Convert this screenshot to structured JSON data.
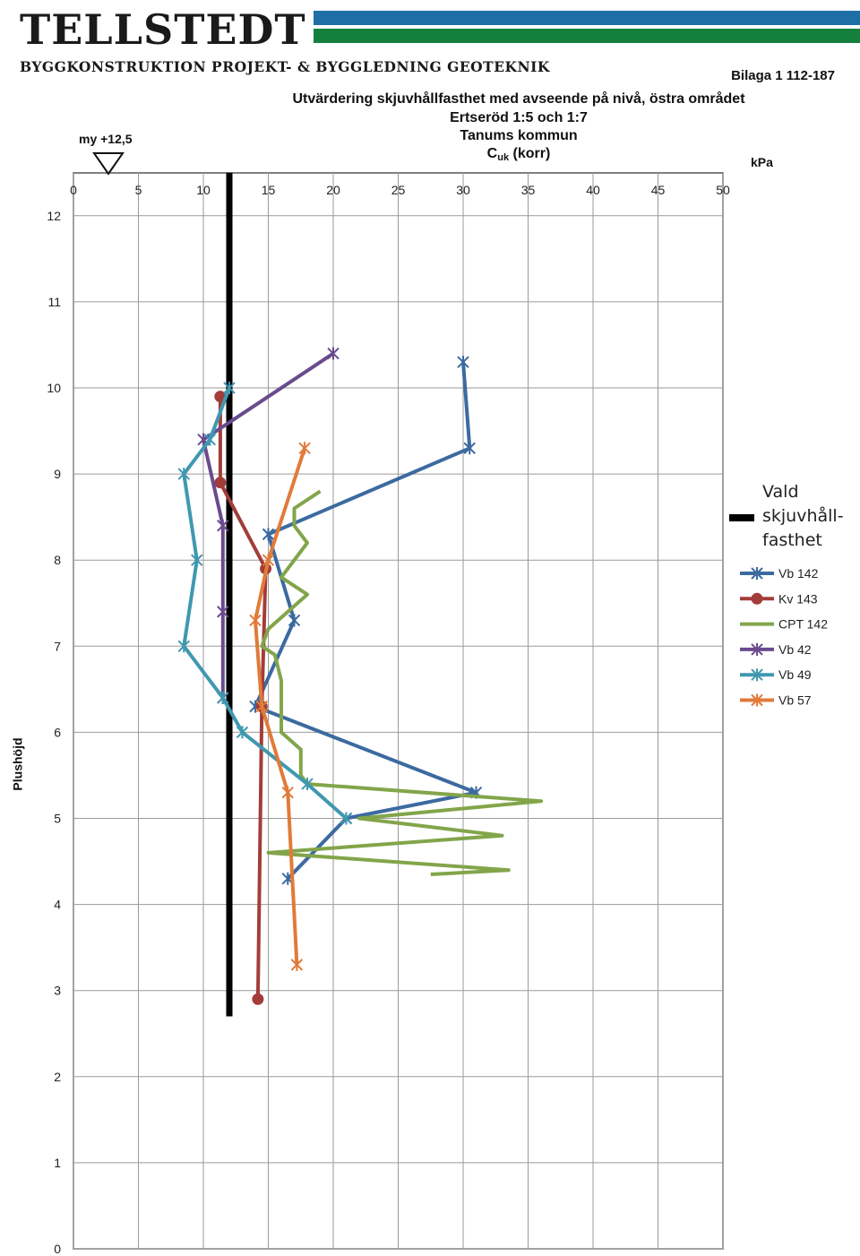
{
  "header": {
    "logo_text": "TELLSTEDT",
    "tagline": "BYGGKONSTRUKTION  PROJEKT- & BYGGLEDNING  GEOTEKNIK",
    "attachment": "Bilaga 1 112-187"
  },
  "colors": {
    "stripe_blue": "#1f6fa6",
    "stripe_green": "#15803d"
  },
  "chart_data": {
    "type": "line",
    "title_lines": [
      "Utvärdering skjuvhållfasthet med avseende på nivå, östra området",
      "Ertseröd 1:5 och 1:7",
      "Tanums kommun"
    ],
    "quantity_main": "C",
    "quantity_sub": "uk",
    "quantity_suffix": " (korr)",
    "x_unit": "kPa",
    "ylabel": "Plushöjd",
    "water_level_label": "my +12,5",
    "xlim": [
      0,
      50
    ],
    "ylim": [
      0,
      12
    ],
    "x_ticks": [
      0,
      5,
      10,
      15,
      20,
      25,
      30,
      35,
      40,
      45,
      50
    ],
    "y_ticks": [
      0,
      1,
      2,
      3,
      4,
      5,
      6,
      7,
      8,
      9,
      10,
      11,
      12
    ],
    "grid": true,
    "legend_position": "right",
    "chosen_strength": {
      "label_lines": [
        "Vald",
        "skjuvhåll-",
        "fasthet"
      ],
      "x": 12,
      "y_range": [
        2.7,
        12.5
      ],
      "color": "#000000"
    },
    "series": [
      {
        "name": "Vb 142",
        "color": "#3c6aa0",
        "marker": "x",
        "points": [
          [
            30,
            10.3
          ],
          [
            30.5,
            9.3
          ],
          [
            15,
            8.3
          ],
          [
            17,
            7.3
          ],
          [
            14,
            6.3
          ],
          [
            31,
            5.3
          ],
          [
            21,
            5.0
          ],
          [
            16.5,
            4.3
          ]
        ]
      },
      {
        "name": "Kv 143",
        "color": "#a33d3a",
        "marker": "o",
        "points": [
          [
            11.3,
            9.9
          ],
          [
            11.3,
            8.9
          ],
          [
            14.8,
            7.9
          ],
          [
            14.5,
            6.3
          ],
          [
            14.2,
            2.9
          ]
        ]
      },
      {
        "name": "CPT 142",
        "color": "#82a54a",
        "marker": "",
        "points": [
          [
            19,
            8.8
          ],
          [
            17,
            8.6
          ],
          [
            17,
            8.4
          ],
          [
            18,
            8.2
          ],
          [
            16,
            7.8
          ],
          [
            18,
            7.6
          ],
          [
            15,
            7.2
          ],
          [
            14.5,
            7.0
          ],
          [
            15.5,
            6.9
          ],
          [
            16,
            6.6
          ],
          [
            16,
            6.0
          ],
          [
            17.5,
            5.8
          ],
          [
            17.5,
            5.5
          ],
          [
            18,
            5.4
          ],
          [
            36,
            5.2
          ],
          [
            22,
            5.0
          ],
          [
            33,
            4.8
          ],
          [
            15,
            4.6
          ],
          [
            33.5,
            4.4
          ],
          [
            27.5,
            4.35
          ]
        ]
      },
      {
        "name": "Vb 42",
        "color": "#6a4b8e",
        "marker": "x",
        "points": [
          [
            20,
            10.4
          ],
          [
            10,
            9.4
          ],
          [
            11.5,
            8.4
          ],
          [
            11.5,
            7.4
          ],
          [
            11.5,
            6.4
          ]
        ]
      },
      {
        "name": "Vb 49",
        "color": "#3f98b0",
        "marker": "x",
        "points": [
          [
            12,
            10.0
          ],
          [
            10.5,
            9.4
          ],
          [
            8.5,
            9.0
          ],
          [
            9.5,
            8.0
          ],
          [
            8.5,
            7.0
          ],
          [
            11.5,
            6.4
          ],
          [
            13,
            6.0
          ],
          [
            18,
            5.4
          ],
          [
            21,
            5.0
          ]
        ]
      },
      {
        "name": "Vb 57",
        "color": "#e07b39",
        "marker": "x",
        "points": [
          [
            17.8,
            9.3
          ],
          [
            15,
            8.0
          ],
          [
            14,
            7.3
          ],
          [
            14.5,
            6.3
          ],
          [
            16.5,
            5.3
          ],
          [
            17.2,
            3.3
          ]
        ]
      }
    ]
  }
}
